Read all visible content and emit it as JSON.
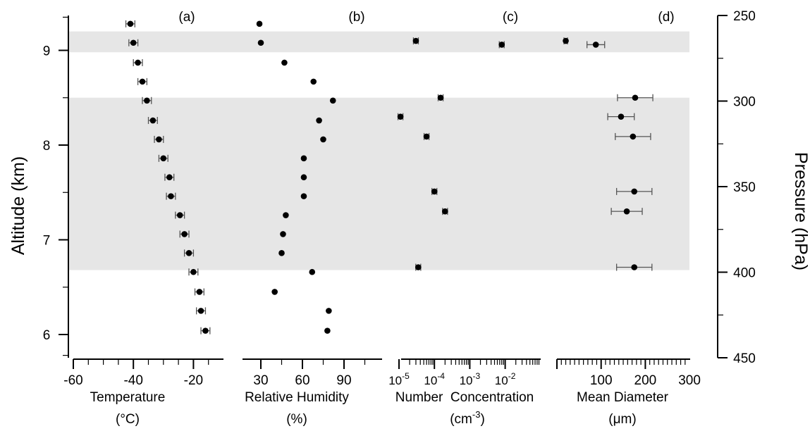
{
  "chart_data": {
    "type": "scatter",
    "y_axis": {
      "label": "Altitude (km)",
      "ticks": [
        "6",
        "7",
        "8",
        "9"
      ],
      "ylim": [
        5.75,
        9.4
      ]
    },
    "right_axis": {
      "label": "Pressure (hPa)",
      "ticks": [
        "250",
        "300",
        "350",
        "400",
        "450"
      ],
      "range": [
        450,
        250
      ]
    },
    "shaded_bands": [
      {
        "y0": 8.98,
        "y1": 9.2
      },
      {
        "y0": 6.68,
        "y1": 8.5
      }
    ],
    "panels": [
      {
        "id": "a",
        "label": "(a)",
        "xlabel": "Temperature",
        "xunit": "(°C)",
        "scale": "linear",
        "xlim": [
          -60,
          -10
        ],
        "xticks": [
          "-60",
          "-40",
          "-20"
        ],
        "points": [
          {
            "y": 9.28,
            "x": -41.0,
            "xerr": 1.5
          },
          {
            "y": 9.08,
            "x": -40.0,
            "xerr": 1.5
          },
          {
            "y": 8.87,
            "x": -38.5,
            "xerr": 1.5
          },
          {
            "y": 8.67,
            "x": -37.0,
            "xerr": 1.5
          },
          {
            "y": 8.47,
            "x": -35.5,
            "xerr": 1.5
          },
          {
            "y": 8.26,
            "x": -33.5,
            "xerr": 1.5
          },
          {
            "y": 8.06,
            "x": -31.5,
            "xerr": 1.5
          },
          {
            "y": 7.86,
            "x": -30.0,
            "xerr": 1.5
          },
          {
            "y": 7.66,
            "x": -28.0,
            "xerr": 1.5
          },
          {
            "y": 7.46,
            "x": -27.5,
            "xerr": 1.5
          },
          {
            "y": 7.26,
            "x": -24.5,
            "xerr": 1.5
          },
          {
            "y": 7.06,
            "x": -23.0,
            "xerr": 1.5
          },
          {
            "y": 6.86,
            "x": -21.5,
            "xerr": 1.5
          },
          {
            "y": 6.66,
            "x": -20.0,
            "xerr": 1.5
          },
          {
            "y": 6.45,
            "x": -18.0,
            "xerr": 1.5
          },
          {
            "y": 6.25,
            "x": -17.5,
            "xerr": 1.5
          },
          {
            "y": 6.04,
            "x": -16.0,
            "xerr": 1.5
          }
        ]
      },
      {
        "id": "b",
        "label": "(b)",
        "xlabel": "Relative Humidity",
        "xunit": "(%)",
        "scale": "linear",
        "xlim": [
          0,
          120
        ],
        "xticks": [
          "30",
          "60",
          "90"
        ],
        "points": [
          {
            "y": 9.28,
            "x": 29
          },
          {
            "y": 9.08,
            "x": 30
          },
          {
            "y": 8.87,
            "x": 47
          },
          {
            "y": 8.67,
            "x": 68
          },
          {
            "y": 8.47,
            "x": 82
          },
          {
            "y": 8.26,
            "x": 72
          },
          {
            "y": 8.06,
            "x": 75
          },
          {
            "y": 7.86,
            "x": 61
          },
          {
            "y": 7.66,
            "x": 61
          },
          {
            "y": 7.46,
            "x": 61
          },
          {
            "y": 7.26,
            "x": 48
          },
          {
            "y": 7.06,
            "x": 46
          },
          {
            "y": 6.86,
            "x": 45
          },
          {
            "y": 6.66,
            "x": 67
          },
          {
            "y": 6.45,
            "x": 40
          },
          {
            "y": 6.25,
            "x": 79
          },
          {
            "y": 6.04,
            "x": 78
          }
        ]
      },
      {
        "id": "c",
        "label": "(c)",
        "xlabel": "Number  Concentration",
        "xunit_base": "(cm",
        "xunit_sup": "-3",
        "xunit_end": ")",
        "scale": "log",
        "xlim_log10": [
          -5.05,
          -0.95
        ],
        "xticks": [
          {
            "base": "10",
            "exp": "-5",
            "log10": -5
          },
          {
            "base": "10",
            "exp": "-4",
            "log10": -4
          },
          {
            "base": "10",
            "exp": "-3",
            "log10": -3
          },
          {
            "base": "10",
            "exp": "-2",
            "log10": -2
          }
        ],
        "points": [
          {
            "y": 9.1,
            "x": 3e-05,
            "xerr_log10": 0.07
          },
          {
            "y": 9.06,
            "x": 0.008,
            "xerr_log10": 0.07
          },
          {
            "y": 8.5,
            "x": 0.00015,
            "xerr_log10": 0.07
          },
          {
            "y": 8.3,
            "x": 1.1e-05,
            "xerr_log10": 0.07
          },
          {
            "y": 8.09,
            "x": 6e-05,
            "xerr_log10": 0.07
          },
          {
            "y": 7.51,
            "x": 0.0001,
            "xerr_log10": 0.07
          },
          {
            "y": 7.3,
            "x": 0.0002,
            "xerr_log10": 0.07
          },
          {
            "y": 6.71,
            "x": 3.5e-05,
            "xerr_log10": 0.07
          }
        ]
      },
      {
        "id": "d",
        "label": "(d)",
        "xlabel": "Mean Diameter",
        "xunit": "(μm)",
        "scale": "linear",
        "xlim": [
          -5,
          300
        ],
        "xticks": [
          "100",
          "200",
          "300"
        ],
        "points": [
          {
            "y": 9.1,
            "x": 20,
            "xerr": 4
          },
          {
            "y": 9.06,
            "x": 88,
            "xerr": 20
          },
          {
            "y": 8.5,
            "x": 177,
            "xerr": 40
          },
          {
            "y": 8.3,
            "x": 145,
            "xerr": 30
          },
          {
            "y": 8.09,
            "x": 172,
            "xerr": 40
          },
          {
            "y": 7.51,
            "x": 175,
            "xerr": 40
          },
          {
            "y": 7.3,
            "x": 158,
            "xerr": 35
          },
          {
            "y": 6.71,
            "x": 175,
            "xerr": 40
          }
        ]
      }
    ]
  }
}
